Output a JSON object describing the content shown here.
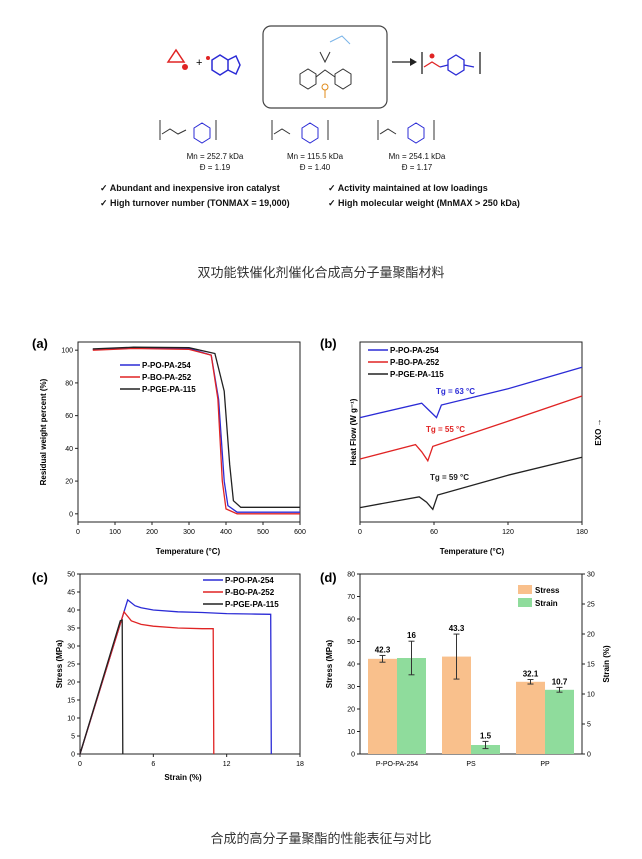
{
  "scheme": {
    "plus": "+",
    "polymers": [
      {
        "mn": "Mn = 252.7 kDa",
        "d": "Đ = 1.19"
      },
      {
        "mn": "Mn = 115.5 kDa",
        "d": "Đ = 1.40"
      },
      {
        "mn": "Mn = 254.1 kDa",
        "d": "Đ = 1.17"
      }
    ],
    "features": [
      "✓  Abundant and inexpensive iron catalyst",
      "✓  High turnover number (TONMAX = 19,000)",
      "✓  Activity maintained at low loadings",
      "✓  High molecular weight (MnMAX > 250 kDa)"
    ]
  },
  "caption1": "双功能铁催化剂催化合成高分子量聚酯材料",
  "caption2": "合成的高分子量聚酯的性能表征与对比",
  "panels": {
    "a": {
      "label": "(a)",
      "xlabel": "Temperature (°C)",
      "ylabel": "Residual weight percent (%)",
      "xticks": [
        "0",
        "100",
        "200",
        "300",
        "400",
        "500",
        "600"
      ],
      "yticks": [
        "0",
        "20",
        "40",
        "60",
        "80",
        "100"
      ],
      "legend": [
        "P-PO-PA-254",
        "P-BO-PA-252",
        "P-PGE-PA-115"
      ]
    },
    "b": {
      "label": "(b)",
      "xlabel": "Temperature (°C)",
      "ylabel": "Heat Flow (W g⁻¹)",
      "exo": "EXO →",
      "xticks": [
        "0",
        "60",
        "120",
        "180"
      ],
      "legend": [
        "P-PO-PA-254",
        "P-BO-PA-252",
        "P-PGE-PA-115"
      ],
      "tg": [
        "Tg = 63 °C",
        "Tg = 55 °C",
        "Tg = 59 °C"
      ]
    },
    "c": {
      "label": "(c)",
      "xlabel": "Strain (%)",
      "ylabel": "Stress (MPa)",
      "xticks": [
        "0",
        "6",
        "12",
        "18"
      ],
      "yticks": [
        "0",
        "5",
        "10",
        "15",
        "20",
        "25",
        "30",
        "35",
        "40",
        "45",
        "50"
      ],
      "legend": [
        "P-PO-PA-254",
        "P-BO-PA-252",
        "P-PGE-PA-115"
      ]
    },
    "d": {
      "label": "(d)",
      "ylabel": "Stress (MPa)",
      "y2label": "Strain (%)",
      "yticks": [
        "0",
        "10",
        "20",
        "30",
        "40",
        "50",
        "60",
        "70",
        "80"
      ],
      "y2ticks": [
        "0",
        "5",
        "10",
        "15",
        "20",
        "25",
        "30"
      ],
      "legend": [
        "Stress",
        "Strain"
      ]
    }
  },
  "chart_data": [
    {
      "type": "line",
      "title": "(a)",
      "xlabel": "Temperature (°C)",
      "ylabel": "Residual weight percent (%)",
      "xlim": [
        0,
        600
      ],
      "ylim": [
        -5,
        105
      ],
      "series": [
        {
          "name": "P-PO-PA-254",
          "color": "#2b2bd6",
          "points": [
            [
              40,
              100.5
            ],
            [
              150,
              101.5
            ],
            [
              300,
              101
            ],
            [
              360,
              97
            ],
            [
              380,
              70
            ],
            [
              395,
              20
            ],
            [
              405,
              5
            ],
            [
              430,
              1
            ],
            [
              600,
              1
            ]
          ]
        },
        {
          "name": "P-BO-PA-252",
          "color": "#e02424",
          "points": [
            [
              40,
              100
            ],
            [
              150,
              101
            ],
            [
              300,
              100.5
            ],
            [
              360,
              97
            ],
            [
              378,
              70
            ],
            [
              390,
              20
            ],
            [
              400,
              3
            ],
            [
              430,
              0
            ],
            [
              600,
              0
            ]
          ]
        },
        {
          "name": "P-PGE-PA-115",
          "color": "#222222",
          "points": [
            [
              40,
              100.8
            ],
            [
              150,
              101.8
            ],
            [
              300,
              101.5
            ],
            [
              370,
              98
            ],
            [
              395,
              75
            ],
            [
              410,
              30
            ],
            [
              420,
              8
            ],
            [
              440,
              4
            ],
            [
              600,
              4
            ]
          ]
        }
      ]
    },
    {
      "type": "line",
      "title": "(b)",
      "xlabel": "Temperature (°C)",
      "ylabel": "Heat Flow (W g⁻¹)",
      "xlim": [
        0,
        180
      ],
      "ylim": [
        0,
        10
      ],
      "series": [
        {
          "name": "P-PO-PA-254",
          "color": "#2b2bd6",
          "points": [
            [
              0,
              5.8
            ],
            [
              50,
              6.6
            ],
            [
              56,
              6.2
            ],
            [
              62,
              5.8
            ],
            [
              66,
              6.5
            ],
            [
              120,
              7.4
            ],
            [
              180,
              8.6
            ]
          ]
        },
        {
          "name": "P-BO-PA-252",
          "color": "#e02424",
          "points": [
            [
              0,
              3.5
            ],
            [
              45,
              4.3
            ],
            [
              50,
              3.9
            ],
            [
              55,
              3.4
            ],
            [
              59,
              4.2
            ],
            [
              120,
              5.6
            ],
            [
              180,
              7.0
            ]
          ]
        },
        {
          "name": "P-PGE-PA-115",
          "color": "#222222",
          "points": [
            [
              0,
              0.8
            ],
            [
              48,
              1.4
            ],
            [
              54,
              1.1
            ],
            [
              59,
              0.7
            ],
            [
              63,
              1.5
            ],
            [
              120,
              2.6
            ],
            [
              180,
              3.6
            ]
          ]
        }
      ]
    },
    {
      "type": "line",
      "title": "(c)",
      "xlabel": "Strain (%)",
      "ylabel": "Stress (MPa)",
      "xlim": [
        0,
        18
      ],
      "ylim": [
        0,
        50
      ],
      "series": [
        {
          "name": "P-PO-PA-254",
          "color": "#2b2bd6",
          "points": [
            [
              0,
              0
            ],
            [
              3.9,
              42.8
            ],
            [
              4.5,
              41.2
            ],
            [
              5,
              40.6
            ],
            [
              6,
              40
            ],
            [
              8,
              39.5
            ],
            [
              10,
              39.3
            ],
            [
              12,
              39
            ],
            [
              14,
              38.9
            ],
            [
              15.6,
              38.8
            ],
            [
              15.65,
              0
            ]
          ]
        },
        {
          "name": "P-BO-PA-252",
          "color": "#e02424",
          "points": [
            [
              0,
              0
            ],
            [
              3.6,
              39.5
            ],
            [
              4.2,
              37
            ],
            [
              5,
              36
            ],
            [
              6,
              35.5
            ],
            [
              8,
              35
            ],
            [
              10,
              34.8
            ],
            [
              10.9,
              34.8
            ],
            [
              10.95,
              0
            ]
          ]
        },
        {
          "name": "P-PGE-PA-115",
          "color": "#222222",
          "points": [
            [
              0,
              0
            ],
            [
              3.3,
              37
            ],
            [
              3.45,
              37.2
            ],
            [
              3.5,
              0
            ]
          ]
        }
      ]
    },
    {
      "type": "bar",
      "title": "(d)",
      "categories": [
        "P-PO-PA-254",
        "PS",
        "PP"
      ],
      "ylabel": "Stress (MPa)",
      "y2label": "Strain (%)",
      "ylim": [
        0,
        80
      ],
      "y2lim": [
        0,
        30
      ],
      "series": [
        {
          "name": "Stress",
          "axis": "left",
          "color": "#f9c08c",
          "values": [
            42.3,
            43.3,
            32.1
          ],
          "errors": [
            1.5,
            10,
            1.0
          ],
          "labels": [
            "42.3",
            "43.3",
            "32.1"
          ]
        },
        {
          "name": "Strain",
          "axis": "right",
          "color": "#8fdc9c",
          "values": [
            16,
            1.5,
            10.7
          ],
          "errors": [
            2.8,
            0.6,
            0.4
          ],
          "labels": [
            "16",
            "1.5",
            "10.7"
          ]
        }
      ]
    }
  ]
}
